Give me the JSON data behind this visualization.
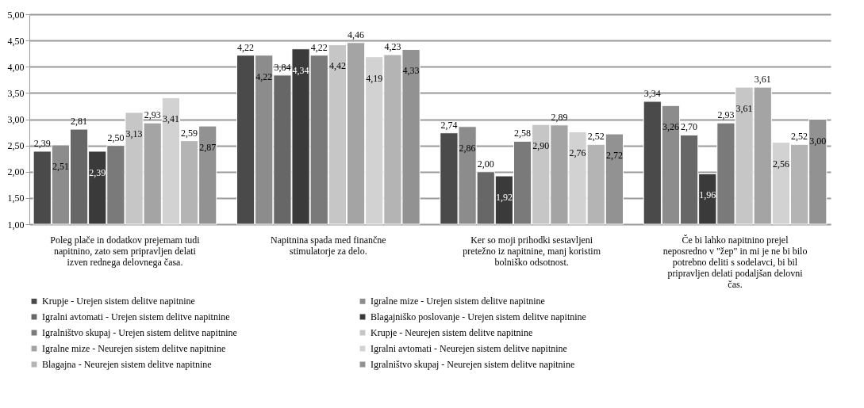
{
  "chart_data": {
    "type": "bar",
    "categories": [
      "Poleg plače in dodatkov prejemam tudi napitnino, zato sem pripravljen delati izven rednega delovnega časa.",
      "Napitnina spada med finančne stimulatorje za delo.",
      "Ker so moji prihodki sestavljeni pretežno iz napitnine, manj koristim bolniško odsotnost.",
      "Če bi lahko napitnino prejel neposredno v \"žep\" in mi je ne bi bilo potrebno deliti s sodelavci, bi bil pripravljen delati podaljšan delovni čas."
    ],
    "series": [
      {
        "name": "Krupje - Urejen sistem delitve napitnine",
        "color": "#4a4a4a",
        "values": [
          2.39,
          4.22,
          2.74,
          3.34
        ],
        "value_labels": [
          "2,39",
          "4,22",
          "2,74",
          "3,34"
        ]
      },
      {
        "name": "Igralne mize - Urejen sistem delitve napitnine",
        "color": "#8c8c8c",
        "values": [
          2.51,
          4.22,
          2.86,
          3.26
        ],
        "value_labels": [
          "2,51",
          "4,22",
          "2,86",
          "3,26"
        ]
      },
      {
        "name": "Igralni avtomati - Urejen sistem delitve napitnine",
        "color": "#676767",
        "values": [
          2.81,
          3.84,
          2.0,
          2.7
        ],
        "value_labels": [
          "2,81",
          "3,84",
          "2,00",
          "2,70"
        ]
      },
      {
        "name": "Blagajniško poslovanje - Urejen sistem delitve napitnine",
        "color": "#3a3a3a",
        "values": [
          2.39,
          4.34,
          1.92,
          1.96
        ],
        "value_labels": [
          "2,39",
          "4,34",
          "1,92",
          "1,96"
        ]
      },
      {
        "name": "Igralništvo skupaj - Urejen sistem delitve napitnine",
        "color": "#7a7a7a",
        "values": [
          2.5,
          4.22,
          2.58,
          2.93
        ],
        "value_labels": [
          "2,50",
          "4,22",
          "2,58",
          "2,93"
        ]
      },
      {
        "name": "Krupje - Neurejen sistem delitve napitnine",
        "color": "#c6c6c6",
        "values": [
          3.13,
          4.42,
          2.9,
          3.61
        ],
        "value_labels": [
          "3,13",
          "4,42",
          "2,90",
          "3,61"
        ]
      },
      {
        "name": "Igralne mize - Neurejen sistem delitve napitnine",
        "color": "#a4a4a4",
        "values": [
          2.93,
          4.46,
          2.89,
          3.61
        ],
        "value_labels": [
          "2,93",
          "4,46",
          "2,89",
          "3,61"
        ]
      },
      {
        "name": "Igralni avtomati - Neurejen sistem delitve napitnine",
        "color": "#d2d2d2",
        "values": [
          3.41,
          4.19,
          2.76,
          2.56
        ],
        "value_labels": [
          "3,41",
          "4,19",
          "2,76",
          "2,56"
        ]
      },
      {
        "name": "Blagajna - Neurejen sistem delitve napitnine",
        "color": "#b4b4b4",
        "values": [
          2.59,
          4.23,
          2.52,
          2.52
        ],
        "value_labels": [
          "2,59",
          "4,23",
          "2,52",
          "2,52"
        ]
      },
      {
        "name": "Igralništvo skupaj - Neurejen sistem delitve napitnine",
        "color": "#929292",
        "values": [
          2.87,
          4.33,
          2.72,
          3.0
        ],
        "value_labels": [
          "2,87",
          "4,33",
          "2,72",
          "3,00"
        ]
      }
    ],
    "ylim": [
      1,
      5
    ],
    "yticks": [
      {
        "value": 1,
        "label": "1,00"
      },
      {
        "value": 1.5,
        "label": "1,50"
      },
      {
        "value": 2,
        "label": "2,00"
      },
      {
        "value": 2.5,
        "label": "2,50"
      },
      {
        "value": 3,
        "label": "3,00"
      },
      {
        "value": 3.5,
        "label": "3,50"
      },
      {
        "value": 4,
        "label": "4,00"
      },
      {
        "value": 4.5,
        "label": "4,50"
      },
      {
        "value": 5,
        "label": "5,00"
      }
    ],
    "grid": "y",
    "legend": "bottom"
  }
}
